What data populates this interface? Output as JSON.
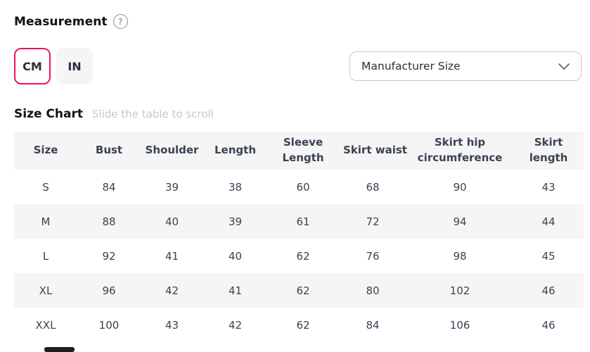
{
  "header": {
    "title": "Measurement",
    "help_icon_glyph": "?"
  },
  "unit_toggle": {
    "options": [
      {
        "label": "CM",
        "selected": true
      },
      {
        "label": "IN",
        "selected": false
      }
    ]
  },
  "size_selector": {
    "selected_value": "Manufacturer Size"
  },
  "size_chart": {
    "title": "Size Chart",
    "hint": "Slide the table to scroll",
    "columns": [
      "Size",
      "Bust",
      "Shoulder",
      "Length",
      "Sleeve Length",
      "Skirt waist",
      "Skirt hip circumference",
      "Skirt length"
    ],
    "rows": [
      [
        "S",
        "84",
        "39",
        "38",
        "60",
        "68",
        "90",
        "43"
      ],
      [
        "M",
        "88",
        "40",
        "39",
        "61",
        "72",
        "94",
        "44"
      ],
      [
        "L",
        "92",
        "41",
        "40",
        "62",
        "76",
        "98",
        "45"
      ],
      [
        "XL",
        "96",
        "42",
        "41",
        "62",
        "80",
        "102",
        "46"
      ],
      [
        "XXL",
        "100",
        "43",
        "42",
        "62",
        "84",
        "106",
        "46"
      ]
    ]
  },
  "colors": {
    "accent": "#ed1651",
    "stripe": "#f5f5f5",
    "text": "#3a4354"
  }
}
